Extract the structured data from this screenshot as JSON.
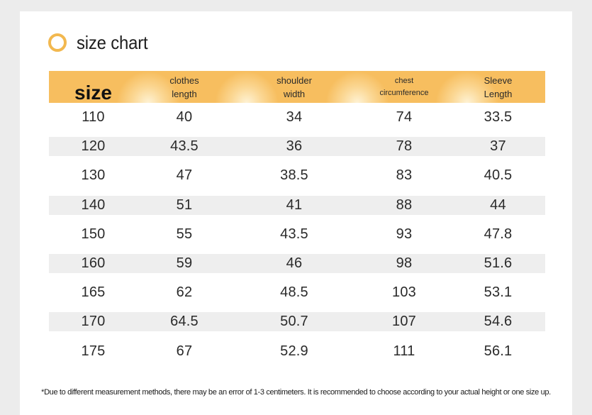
{
  "title": "size chart",
  "icon": "ring-icon",
  "accent_color": "#f7be5f",
  "headers": {
    "size": "size",
    "clothes_line1": "clothes",
    "clothes_line2": "length",
    "shoulder_line1": "shoulder",
    "shoulder_line2": "width",
    "chest_line1": "chest",
    "chest_line2": "circumference",
    "sleeve_line1": "Sleeve",
    "sleeve_line2": "Length"
  },
  "rows": [
    [
      "110",
      "40",
      "34",
      "74",
      "33.5"
    ],
    [
      "120",
      "43.5",
      "36",
      "78",
      "37"
    ],
    [
      "130",
      "47",
      "38.5",
      "83",
      "40.5"
    ],
    [
      "140",
      "51",
      "41",
      "88",
      "44"
    ],
    [
      "150",
      "55",
      "43.5",
      "93",
      "47.8"
    ],
    [
      "160",
      "59",
      "46",
      "98",
      "51.6"
    ],
    [
      "165",
      "62",
      "48.5",
      "103",
      "53.1"
    ],
    [
      "170",
      "64.5",
      "50.7",
      "107",
      "54.6"
    ],
    [
      "175",
      "67",
      "52.9",
      "111",
      "56.1"
    ]
  ],
  "note": "*Due to different measurement methods, there may be an error of 1-3 centimeters. It is recommended to choose according to your actual height or one size up."
}
